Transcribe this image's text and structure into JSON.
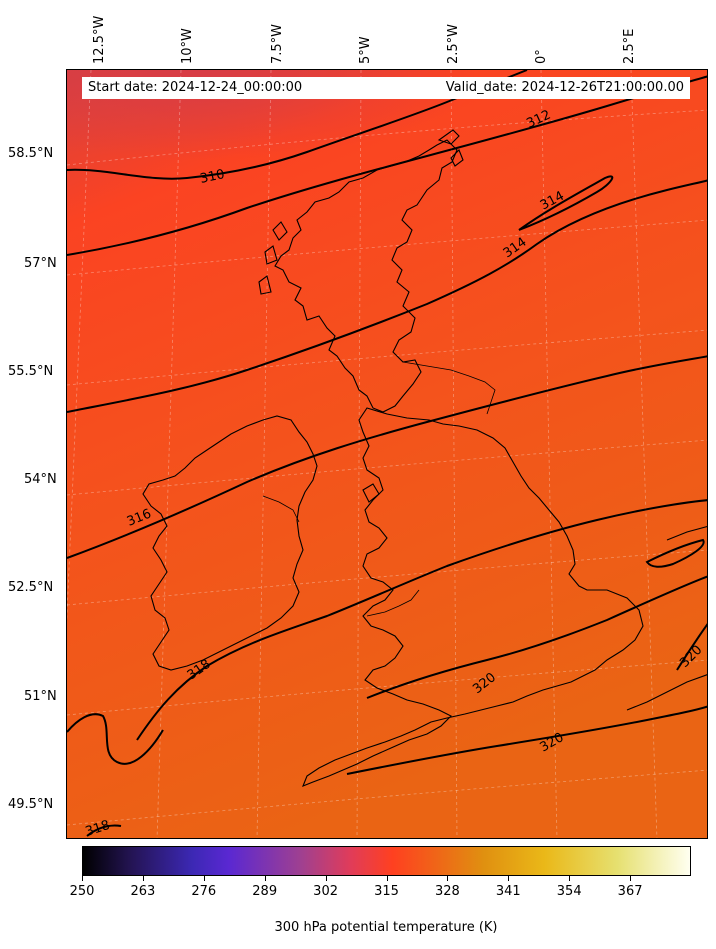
{
  "header": {
    "start_date": "Start date: 2024-12-24_00:00:00",
    "valid_date": "Valid_date: 2024-12-26T21:00:00.00"
  },
  "axes": {
    "longitude_labels": [
      "12.5°W",
      "10°W",
      "7.5°W",
      "5°W",
      "2.5°W",
      "0°",
      "2.5°E"
    ],
    "latitude_labels": [
      "58.5°N",
      "57°N",
      "55.5°N",
      "54°N",
      "52.5°N",
      "51°N",
      "49.5°N"
    ],
    "gridlines": true
  },
  "contours": {
    "levels": [
      310,
      312,
      314,
      316,
      318,
      320
    ],
    "labels": [
      "310",
      "312",
      "314",
      "314",
      "316",
      "318",
      "320",
      "320",
      "320",
      "318"
    ],
    "color": "#000000"
  },
  "colorbar": {
    "title": "300 hPa potential temperature (K)",
    "ticks": [
      "250",
      "263",
      "276",
      "289",
      "302",
      "315",
      "328",
      "341",
      "354",
      "367"
    ],
    "range": [
      250,
      380
    ],
    "colormap": "gnuplot2-like"
  },
  "colors": {
    "field_cold": "#e04238",
    "field_mid": "#fb4322",
    "field_warm": "#ec6418",
    "coastline": "#000000"
  }
}
